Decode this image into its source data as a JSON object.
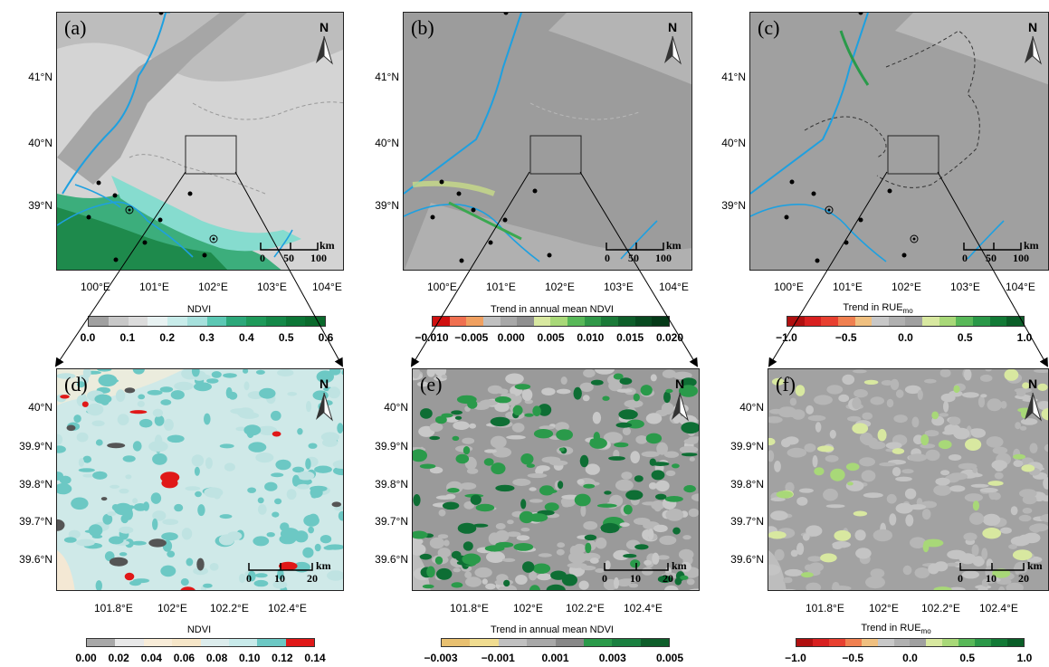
{
  "panels": {
    "a": {
      "label": "(a)"
    },
    "b": {
      "label": "(b)"
    },
    "c": {
      "label": "(c)"
    },
    "d": {
      "label": "(d)"
    },
    "e": {
      "label": "(e)"
    },
    "f": {
      "label": "(f)"
    }
  },
  "north_label": "N",
  "top_axes": {
    "lat_ticks": [
      "41°N",
      "40°N",
      "39°N"
    ],
    "lon_ticks": [
      "100°E",
      "101°E",
      "102°E",
      "103°E",
      "104°E"
    ]
  },
  "bottom_axes": {
    "lat_ticks": [
      "40°N",
      "39.9°N",
      "39.8°N",
      "39.7°N",
      "39.6°N"
    ],
    "lon_ticks": [
      "101.8°E",
      "102°E",
      "102.2°E",
      "102.4°E"
    ]
  },
  "scalebars": {
    "top": [
      "0",
      "50",
      "100",
      "km"
    ],
    "bottom": [
      "0",
      "10",
      "20",
      "km"
    ]
  },
  "colorbars": {
    "a": {
      "title": "NDVI",
      "labels": [
        "0.0",
        "0.1",
        "0.2",
        "0.3",
        "0.4",
        "0.5",
        "0.6"
      ],
      "colors": [
        "#a0a0a0",
        "#c8c8c8",
        "#dcdcdc",
        "#e8f2f2",
        "#c8ecea",
        "#a6e0dc",
        "#5cc8b4",
        "#2ca87a",
        "#1e9a5a",
        "#148848",
        "#0c7636",
        "#0a6a2c"
      ]
    },
    "b": {
      "title": "Trend in annual mean NDVI",
      "labels": [
        "−0.010",
        "−0.005",
        "0.000",
        "0.005",
        "0.010",
        "0.015",
        "0.020"
      ],
      "colors": [
        "#d01010",
        "#f07050",
        "#f0a060",
        "#c0c0c0",
        "#a8a8a8",
        "#909090",
        "#d8e8a0",
        "#a8d878",
        "#58b858",
        "#309848",
        "#1a7a38",
        "#0e5e2a",
        "#084a20",
        "#053a18"
      ]
    },
    "c": {
      "title": "Trend in RUE",
      "title_sub": "mo",
      "labels": [
        "−1.0",
        "−0.5",
        "0.0",
        "0.5",
        "1.0"
      ],
      "colors": [
        "#b01010",
        "#d82020",
        "#e84030",
        "#f08050",
        "#f0c080",
        "#c8c8c8",
        "#b0b0b0",
        "#a0a0a0",
        "#d8e8a0",
        "#a8d878",
        "#58b858",
        "#2a9848",
        "#127a36",
        "#0a5e28"
      ]
    },
    "d": {
      "title": "NDVI",
      "labels": [
        "0.00",
        "0.02",
        "0.04",
        "0.06",
        "0.08",
        "0.10",
        "0.12",
        "0.14"
      ],
      "colors": [
        "#a8a8a8",
        "#e8e8e8",
        "#f8ecd8",
        "#f6e6c8",
        "#dcecec",
        "#c8eaea",
        "#6cc8c4",
        "#e01818"
      ]
    },
    "e": {
      "title": "Trend in annual mean NDVI",
      "labels": [
        "−0.003",
        "−0.001",
        "0.001",
        "0.003",
        "0.005"
      ],
      "colors": [
        "#e8c070",
        "#f0dc90",
        "#c0c0c0",
        "#a8a8a8",
        "#888888",
        "#2a9a4a",
        "#1a8040",
        "#0e5e2a"
      ]
    },
    "f": {
      "title": "Trend in RUE",
      "title_sub": "mo",
      "labels": [
        "−1.0",
        "−0.5",
        "0.0",
        "0.5",
        "1.0"
      ],
      "colors": [
        "#b01010",
        "#d82020",
        "#e84030",
        "#f08050",
        "#f0c080",
        "#c8c8c8",
        "#b0b0b0",
        "#a0a0a0",
        "#d8e8a0",
        "#a8d878",
        "#58b858",
        "#2a9848",
        "#127a36",
        "#0a5e28"
      ]
    }
  },
  "colors": {
    "river": "#1ea0e0",
    "bg_light": "#d4d4d4",
    "bg_dark": "#9a9a9a",
    "dense_veg": "#1e9a5a",
    "cyan_veg": "#80d8cc"
  }
}
